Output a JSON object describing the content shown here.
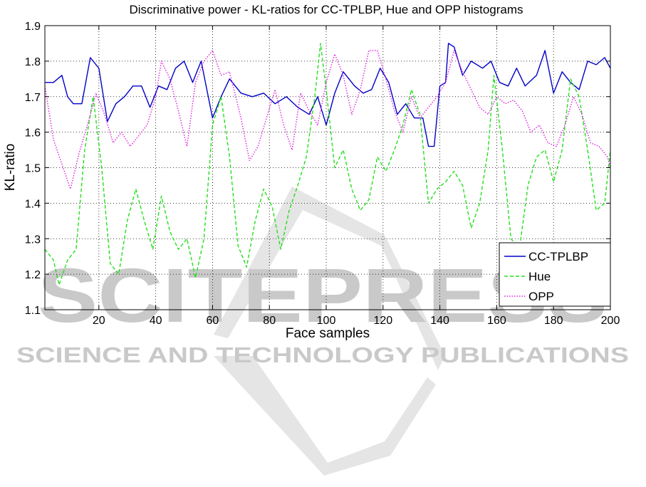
{
  "watermark": {
    "main": "SCITEPRESS",
    "sub": "SCIENCE AND TECHNOLOGY PUBLICATIONS",
    "color": "#c9c9c9"
  },
  "chart_data": {
    "type": "line",
    "title": "Discriminative power - KL-ratios for CC-TPLBP, Hue and OPP histograms",
    "xlabel": "Face samples",
    "ylabel": "KL-ratio",
    "xlim": [
      1,
      200
    ],
    "ylim": [
      1.1,
      1.9
    ],
    "xticks": [
      20,
      40,
      60,
      80,
      100,
      120,
      140,
      160,
      180,
      200
    ],
    "yticks": [
      1.1,
      1.2,
      1.3,
      1.4,
      1.5,
      1.6,
      1.7,
      1.8,
      1.9
    ],
    "grid": true,
    "legend_position": "bottom-right",
    "series": [
      {
        "name": "CC-TPLBP",
        "color": "#0000c8",
        "style": "solid",
        "points": [
          [
            1,
            1.74
          ],
          [
            4,
            1.74
          ],
          [
            7,
            1.76
          ],
          [
            9,
            1.7
          ],
          [
            11,
            1.68
          ],
          [
            14,
            1.68
          ],
          [
            17,
            1.81
          ],
          [
            20,
            1.78
          ],
          [
            23,
            1.63
          ],
          [
            26,
            1.68
          ],
          [
            29,
            1.7
          ],
          [
            32,
            1.73
          ],
          [
            35,
            1.73
          ],
          [
            38,
            1.67
          ],
          [
            41,
            1.73
          ],
          [
            44,
            1.72
          ],
          [
            47,
            1.78
          ],
          [
            50,
            1.8
          ],
          [
            53,
            1.74
          ],
          [
            56,
            1.8
          ],
          [
            60,
            1.64
          ],
          [
            63,
            1.7
          ],
          [
            66,
            1.75
          ],
          [
            70,
            1.71
          ],
          [
            74,
            1.7
          ],
          [
            78,
            1.71
          ],
          [
            82,
            1.68
          ],
          [
            86,
            1.7
          ],
          [
            90,
            1.67
          ],
          [
            94,
            1.65
          ],
          [
            97,
            1.7
          ],
          [
            100,
            1.62
          ],
          [
            103,
            1.71
          ],
          [
            106,
            1.77
          ],
          [
            110,
            1.73
          ],
          [
            113,
            1.71
          ],
          [
            116,
            1.72
          ],
          [
            119,
            1.78
          ],
          [
            122,
            1.74
          ],
          [
            125,
            1.65
          ],
          [
            128,
            1.68
          ],
          [
            131,
            1.64
          ],
          [
            134,
            1.64
          ],
          [
            136,
            1.56
          ],
          [
            138,
            1.56
          ],
          [
            140,
            1.73
          ],
          [
            142,
            1.74
          ],
          [
            143,
            1.85
          ],
          [
            145,
            1.84
          ],
          [
            148,
            1.76
          ],
          [
            151,
            1.8
          ],
          [
            155,
            1.78
          ],
          [
            158,
            1.8
          ],
          [
            161,
            1.74
          ],
          [
            164,
            1.73
          ],
          [
            167,
            1.78
          ],
          [
            170,
            1.73
          ],
          [
            174,
            1.76
          ],
          [
            177,
            1.83
          ],
          [
            180,
            1.71
          ],
          [
            183,
            1.77
          ],
          [
            186,
            1.74
          ],
          [
            189,
            1.72
          ],
          [
            192,
            1.8
          ],
          [
            195,
            1.79
          ],
          [
            198,
            1.81
          ],
          [
            200,
            1.78
          ]
        ]
      },
      {
        "name": "Hue",
        "color": "#22e01c",
        "style": "dashed",
        "points": [
          [
            1,
            1.27
          ],
          [
            4,
            1.24
          ],
          [
            6,
            1.17
          ],
          [
            9,
            1.24
          ],
          [
            12,
            1.27
          ],
          [
            15,
            1.55
          ],
          [
            18,
            1.7
          ],
          [
            21,
            1.5
          ],
          [
            24,
            1.23
          ],
          [
            27,
            1.2
          ],
          [
            30,
            1.35
          ],
          [
            33,
            1.44
          ],
          [
            36,
            1.35
          ],
          [
            39,
            1.27
          ],
          [
            42,
            1.42
          ],
          [
            45,
            1.32
          ],
          [
            48,
            1.27
          ],
          [
            51,
            1.3
          ],
          [
            54,
            1.19
          ],
          [
            57,
            1.3
          ],
          [
            60,
            1.62
          ],
          [
            63,
            1.7
          ],
          [
            66,
            1.53
          ],
          [
            69,
            1.28
          ],
          [
            72,
            1.22
          ],
          [
            75,
            1.35
          ],
          [
            78,
            1.44
          ],
          [
            81,
            1.39
          ],
          [
            84,
            1.27
          ],
          [
            87,
            1.38
          ],
          [
            90,
            1.45
          ],
          [
            93,
            1.53
          ],
          [
            96,
            1.7
          ],
          [
            98,
            1.85
          ],
          [
            100,
            1.72
          ],
          [
            103,
            1.5
          ],
          [
            106,
            1.55
          ],
          [
            109,
            1.44
          ],
          [
            112,
            1.38
          ],
          [
            115,
            1.41
          ],
          [
            118,
            1.53
          ],
          [
            121,
            1.49
          ],
          [
            124,
            1.55
          ],
          [
            127,
            1.62
          ],
          [
            130,
            1.72
          ],
          [
            133,
            1.65
          ],
          [
            136,
            1.4
          ],
          [
            139,
            1.44
          ],
          [
            142,
            1.46
          ],
          [
            145,
            1.49
          ],
          [
            148,
            1.45
          ],
          [
            151,
            1.33
          ],
          [
            154,
            1.4
          ],
          [
            157,
            1.55
          ],
          [
            159,
            1.76
          ],
          [
            162,
            1.55
          ],
          [
            165,
            1.3
          ],
          [
            168,
            1.27
          ],
          [
            171,
            1.45
          ],
          [
            174,
            1.53
          ],
          [
            177,
            1.55
          ],
          [
            180,
            1.46
          ],
          [
            183,
            1.55
          ],
          [
            186,
            1.75
          ],
          [
            189,
            1.7
          ],
          [
            192,
            1.55
          ],
          [
            195,
            1.38
          ],
          [
            198,
            1.4
          ],
          [
            200,
            1.55
          ]
        ]
      },
      {
        "name": "OPP",
        "color": "#dd22dd",
        "style": "dotted",
        "points": [
          [
            1,
            1.73
          ],
          [
            4,
            1.58
          ],
          [
            7,
            1.51
          ],
          [
            10,
            1.44
          ],
          [
            13,
            1.54
          ],
          [
            16,
            1.62
          ],
          [
            19,
            1.71
          ],
          [
            22,
            1.65
          ],
          [
            25,
            1.57
          ],
          [
            28,
            1.6
          ],
          [
            31,
            1.56
          ],
          [
            34,
            1.59
          ],
          [
            37,
            1.62
          ],
          [
            40,
            1.7
          ],
          [
            42,
            1.8
          ],
          [
            45,
            1.75
          ],
          [
            48,
            1.66
          ],
          [
            51,
            1.56
          ],
          [
            54,
            1.74
          ],
          [
            57,
            1.8
          ],
          [
            60,
            1.83
          ],
          [
            63,
            1.76
          ],
          [
            66,
            1.77
          ],
          [
            70,
            1.64
          ],
          [
            73,
            1.52
          ],
          [
            76,
            1.56
          ],
          [
            79,
            1.64
          ],
          [
            82,
            1.72
          ],
          [
            85,
            1.62
          ],
          [
            88,
            1.55
          ],
          [
            91,
            1.71
          ],
          [
            94,
            1.66
          ],
          [
            97,
            1.62
          ],
          [
            100,
            1.74
          ],
          [
            103,
            1.82
          ],
          [
            106,
            1.76
          ],
          [
            109,
            1.65
          ],
          [
            112,
            1.72
          ],
          [
            115,
            1.83
          ],
          [
            118,
            1.83
          ],
          [
            121,
            1.75
          ],
          [
            124,
            1.66
          ],
          [
            127,
            1.6
          ],
          [
            130,
            1.7
          ],
          [
            133,
            1.64
          ],
          [
            136,
            1.67
          ],
          [
            139,
            1.7
          ],
          [
            142,
            1.74
          ],
          [
            145,
            1.83
          ],
          [
            148,
            1.77
          ],
          [
            151,
            1.72
          ],
          [
            154,
            1.67
          ],
          [
            157,
            1.65
          ],
          [
            160,
            1.7
          ],
          [
            163,
            1.68
          ],
          [
            166,
            1.69
          ],
          [
            169,
            1.66
          ],
          [
            172,
            1.6
          ],
          [
            175,
            1.62
          ],
          [
            178,
            1.57
          ],
          [
            181,
            1.56
          ],
          [
            184,
            1.62
          ],
          [
            187,
            1.7
          ],
          [
            190,
            1.65
          ],
          [
            193,
            1.57
          ],
          [
            196,
            1.56
          ],
          [
            199,
            1.53
          ],
          [
            200,
            1.5
          ]
        ]
      }
    ]
  }
}
